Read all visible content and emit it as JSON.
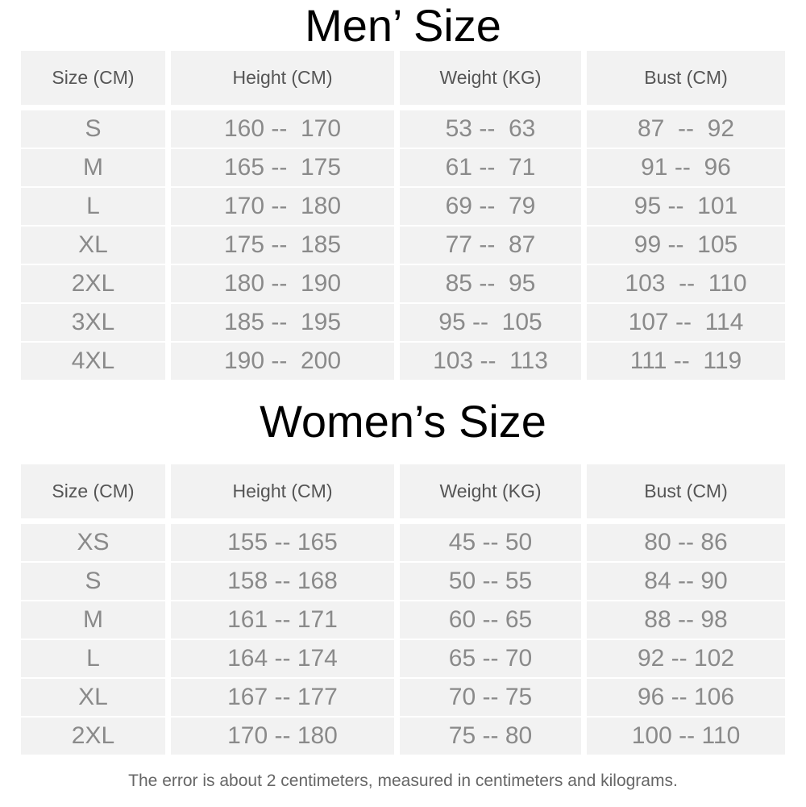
{
  "men": {
    "title": "Men’ Size",
    "headers": [
      "Size (CM)",
      "Height (CM)",
      "Weight (KG)",
      "Bust (CM)"
    ],
    "rows": [
      [
        "S",
        "160 --  170",
        "53 --  63",
        "87  --  92"
      ],
      [
        "M",
        "165 --  175",
        "61 --  71",
        "91 --  96"
      ],
      [
        "L",
        "170 --  180",
        "69 --  79",
        "95 --  101"
      ],
      [
        "XL",
        "175 --  185",
        "77 --  87",
        "99 --  105"
      ],
      [
        "2XL",
        "180 --  190",
        "85 --  95",
        "103  --  110"
      ],
      [
        "3XL",
        "185 --  195",
        "95 --  105",
        "107 --  114"
      ],
      [
        "4XL",
        "190 --  200",
        "103 --  113",
        "111 --  119"
      ]
    ]
  },
  "women": {
    "title": "Women’s Size",
    "headers": [
      "Size (CM)",
      "Height (CM)",
      "Weight (KG)",
      "Bust (CM)"
    ],
    "rows": [
      [
        "XS",
        "155 -- 165",
        "45 -- 50",
        "80 -- 86"
      ],
      [
        "S",
        "158 -- 168",
        "50 -- 55",
        "84 -- 90"
      ],
      [
        "M",
        "161 -- 171",
        "60 -- 65",
        "88 -- 98"
      ],
      [
        "L",
        "164 -- 174",
        "65 -- 70",
        "92 -- 102"
      ],
      [
        "XL",
        "167 -- 177",
        "70 -- 75",
        "96 -- 106"
      ],
      [
        "2XL",
        "170 -- 180",
        "75 -- 80",
        "100 -- 110"
      ]
    ]
  },
  "footnote": "The error is about 2 centimeters, measured in centimeters and kilograms."
}
